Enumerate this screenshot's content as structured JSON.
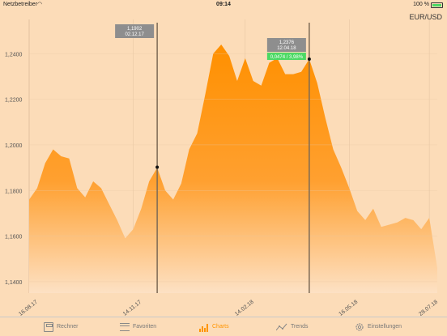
{
  "status_bar": {
    "carrier": "Netzbetreiber",
    "time": "09:14",
    "battery": "100 %"
  },
  "pair": "EUR/USD",
  "colors": {
    "background": "#fcdcb8",
    "area_top": "#ff9000",
    "area_bottom": "#fde1c4",
    "active_tab": "#ff9500",
    "marker_line": "#7d6a55",
    "tooltip_gray": "#8e8e8e",
    "tooltip_green": "#4cd964"
  },
  "tabs": [
    {
      "label": "Rechner",
      "icon": "calculator-icon",
      "active": false
    },
    {
      "label": "Favoriten",
      "icon": "list-icon",
      "active": false
    },
    {
      "label": "Charts",
      "icon": "bar-chart-icon",
      "active": true
    },
    {
      "label": "Trends",
      "icon": "trend-line-icon",
      "active": false
    },
    {
      "label": "Einstellungen",
      "icon": "gear-icon",
      "active": false
    }
  ],
  "markers": [
    {
      "label_value": "1,1902",
      "label_date": "02.12.17",
      "x_date": "02.12.17",
      "value": 1.1902
    },
    {
      "label_value": "1,2376",
      "label_date": "12.04.18",
      "x_date": "12.04.18",
      "value": 1.2376,
      "extra_label": "0,0474 / 3,98%"
    }
  ],
  "chart_data": {
    "type": "area",
    "series": [
      {
        "x": [
          "16.08.17",
          "23.08.17",
          "30.08.17",
          "06.09.17",
          "13.09.17",
          "20.09.17",
          "27.09.17",
          "04.10.17",
          "11.10.17",
          "18.10.17",
          "25.10.17",
          "01.11.17",
          "08.11.17",
          "14.11.17",
          "21.11.17",
          "28.11.17",
          "02.12.17",
          "09.12.17",
          "16.12.17",
          "23.12.17",
          "30.12.17",
          "06.01.18",
          "13.01.18",
          "20.01.18",
          "27.01.18",
          "03.02.18",
          "10.02.18",
          "14.02.18",
          "21.02.18",
          "28.02.18",
          "07.03.18",
          "14.03.18",
          "21.03.18",
          "28.03.18",
          "04.04.18",
          "12.04.18",
          "19.04.18",
          "26.04.18",
          "03.05.18",
          "10.05.18",
          "16.05.18",
          "23.05.18",
          "30.05.18",
          "06.06.18",
          "13.06.18",
          "20.06.18",
          "27.06.18",
          "04.07.18",
          "11.07.18",
          "18.07.18",
          "28.07.18",
          "04.08.18"
        ],
        "values": [
          1.176,
          1.181,
          1.192,
          1.198,
          1.195,
          1.194,
          1.181,
          1.177,
          1.184,
          1.181,
          1.174,
          1.167,
          1.159,
          1.163,
          1.172,
          1.184,
          1.19,
          1.18,
          1.176,
          1.183,
          1.198,
          1.205,
          1.222,
          1.24,
          1.244,
          1.239,
          1.228,
          1.238,
          1.228,
          1.226,
          1.236,
          1.238,
          1.231,
          1.231,
          1.232,
          1.2376,
          1.227,
          1.212,
          1.198,
          1.19,
          1.181,
          1.171,
          1.167,
          1.172,
          1.164,
          1.165,
          1.166,
          1.168,
          1.167,
          1.163,
          1.168,
          1.146
        ]
      }
    ],
    "xticks": [
      "16.08.17",
      "14.11.17",
      "14.02.18",
      "16.05.18",
      "28.07.18"
    ],
    "yticks": [
      "1,1400",
      "1,1600",
      "1,1800",
      "1,2000",
      "1,2200",
      "1,2400"
    ],
    "ylim": [
      1.135,
      1.255
    ],
    "grid": true
  }
}
